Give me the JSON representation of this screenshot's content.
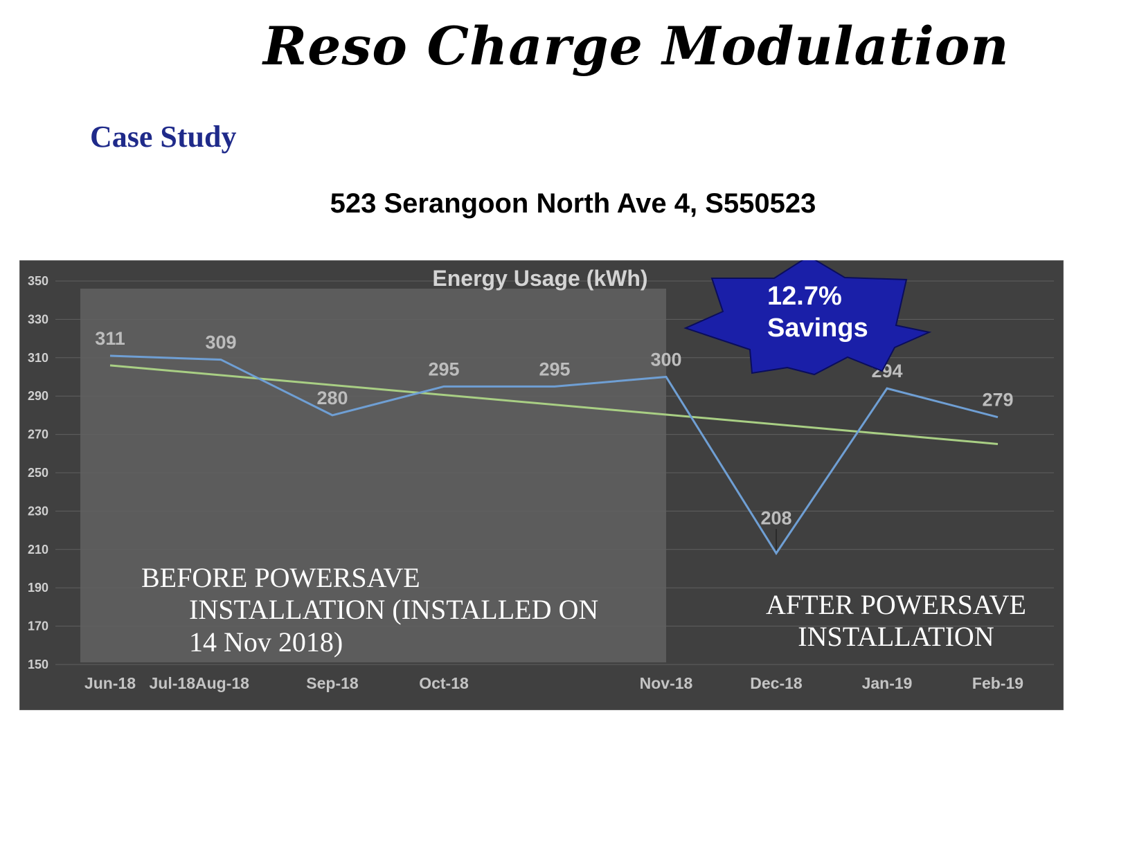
{
  "page": {
    "title": "Reso Charge Modulation",
    "subtitle": "Case Study",
    "address": "523 Serangoon North Ave 4, S550523"
  },
  "colors": {
    "chart_background": "#404040",
    "before_region": "#5c5c5c",
    "usage_line": "#6f9fd4",
    "trend_line": "#a9cf84",
    "badge_fill": "#1a1fa8",
    "subtitle_color": "#1f2a8a"
  },
  "chart_data": {
    "type": "line",
    "title": "Energy Usage (kWh)",
    "categories": [
      "Jun-18",
      "Jul-18",
      "Aug-18",
      "Sep-18",
      "Oct-18",
      "",
      "Nov-18",
      "Dec-18",
      "Jan-19",
      "Feb-19"
    ],
    "series": [
      {
        "x": [
          "Jun-18",
          "Aug-18",
          "Sep-18",
          "Oct-18",
          "",
          "Nov-18",
          "Dec-18",
          "Jan-19",
          "Feb-19"
        ],
        "values": [
          311,
          309,
          280,
          295,
          295,
          300,
          208,
          294,
          279
        ],
        "data_labels": [
          "311",
          "309",
          "280",
          "295",
          "295",
          "300",
          "208",
          "294",
          "279"
        ]
      },
      {
        "type": "linear-trend",
        "x": [
          "Jun-18",
          "Feb-19"
        ],
        "values": [
          306,
          265
        ]
      }
    ],
    "yticks": [
      350,
      330,
      310,
      290,
      270,
      250,
      230,
      210,
      190,
      170,
      150
    ],
    "ylim": [
      150,
      350
    ],
    "grid": "horizontal",
    "legend": "none",
    "annotations": {
      "before_line1": "BEFORE POWERSAVE",
      "before_line2": "INSTALLATION (INSTALLED ON",
      "before_line3": "14 Nov 2018)",
      "after_line1": "AFTER POWERSAVE",
      "after_line2": "INSTALLATION",
      "badge_line1": "12.7%",
      "badge_line2": "Savings"
    }
  }
}
